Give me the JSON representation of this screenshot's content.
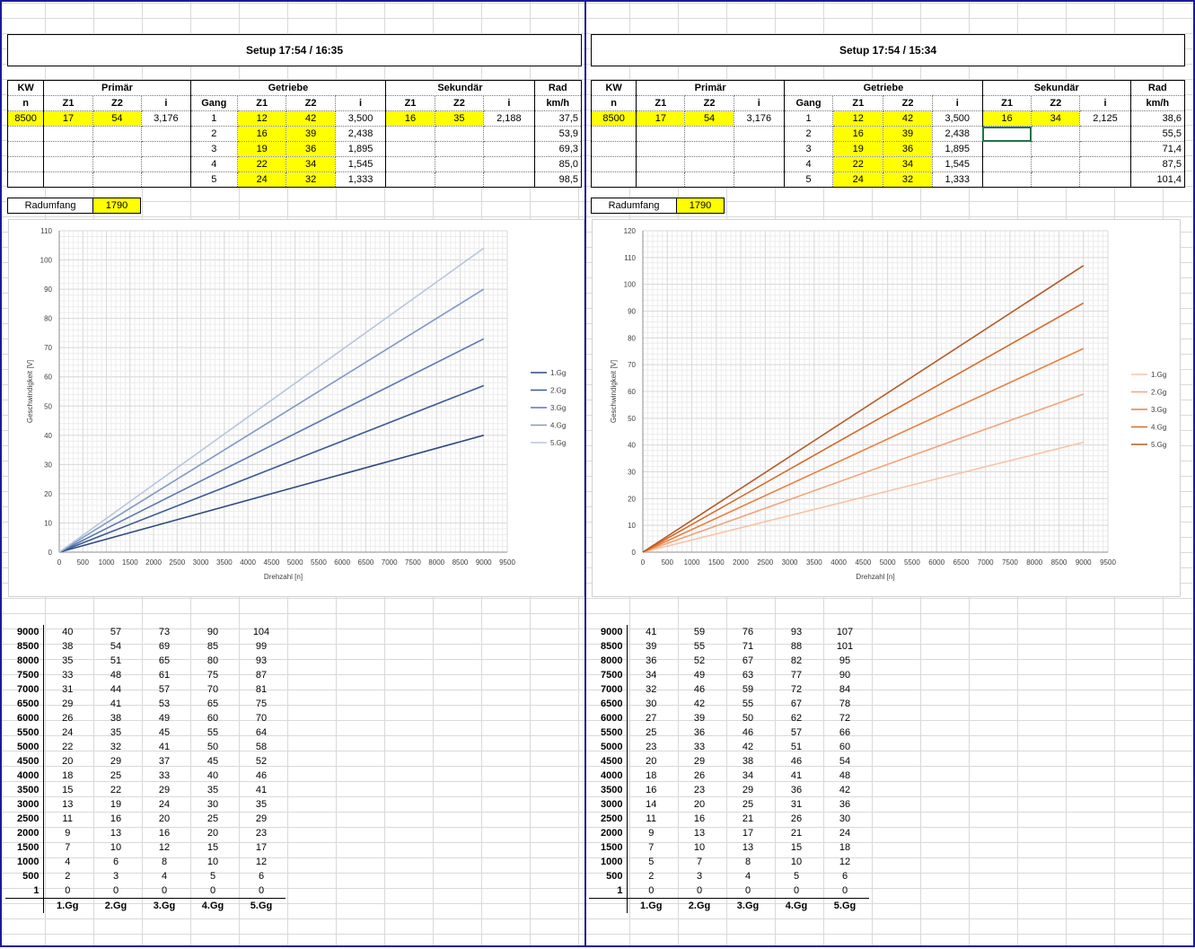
{
  "panels": [
    {
      "id": "left",
      "setup_title": "Setup 17:54 / 16:35",
      "headers_row1": [
        "KW",
        "Primär",
        "Getriebe",
        "Sekundär",
        "Rad"
      ],
      "headers_row2": [
        "n",
        "Z1",
        "Z2",
        "i",
        "Gang",
        "Z1",
        "Z2",
        "i",
        "Z1",
        "Z2",
        "i",
        "km/h"
      ],
      "first_row": {
        "n": "8500",
        "p_z1": "17",
        "p_z2": "54",
        "p_i": "3,176",
        "s_z1": "16",
        "s_z2": "35",
        "s_i": "2,188"
      },
      "gears": [
        {
          "gang": "1",
          "z1": "12",
          "z2": "42",
          "i": "3,500",
          "kmh": "37,5"
        },
        {
          "gang": "2",
          "z1": "16",
          "z2": "39",
          "i": "2,438",
          "kmh": "53,9"
        },
        {
          "gang": "3",
          "z1": "19",
          "z2": "36",
          "i": "1,895",
          "kmh": "69,3"
        },
        {
          "gang": "4",
          "z1": "22",
          "z2": "34",
          "i": "1,545",
          "kmh": "85,0"
        },
        {
          "gang": "5",
          "z1": "24",
          "z2": "32",
          "i": "1,333",
          "kmh": "98,5"
        }
      ],
      "radumfang_label": "Radumfang",
      "radumfang_value": "1790",
      "colors": [
        "#2e4a7f",
        "#3b5a94",
        "#5a79ad",
        "#8099c4",
        "#b7c5de"
      ],
      "chart_data": {
        "type": "line",
        "xlabel": "Drehzahl [n]",
        "ylabel": "Geschwindigkeit [V]",
        "xlim": [
          0,
          9500
        ],
        "ylim": [
          0,
          110
        ],
        "xticks": [
          0,
          500,
          1000,
          1500,
          2000,
          2500,
          3000,
          3500,
          4000,
          4500,
          5000,
          5500,
          6000,
          6500,
          7000,
          7500,
          8000,
          8500,
          9000,
          9500
        ],
        "yticks": [
          0,
          10,
          20,
          30,
          40,
          50,
          60,
          70,
          80,
          90,
          100,
          110
        ],
        "legend_position": "right",
        "series": [
          {
            "name": "1.Gg",
            "x": [
              0,
              9000
            ],
            "y": [
              0,
              40
            ]
          },
          {
            "name": "2.Gg",
            "x": [
              0,
              9000
            ],
            "y": [
              0,
              57
            ]
          },
          {
            "name": "3.Gg",
            "x": [
              0,
              9000
            ],
            "y": [
              0,
              73
            ]
          },
          {
            "name": "4.Gg",
            "x": [
              0,
              9000
            ],
            "y": [
              0,
              90
            ]
          },
          {
            "name": "5.Gg",
            "x": [
              0,
              9000
            ],
            "y": [
              0,
              104
            ]
          }
        ]
      },
      "speed_table": {
        "rpm": [
          "9000",
          "8500",
          "8000",
          "7500",
          "7000",
          "6500",
          "6000",
          "5500",
          "5000",
          "4500",
          "4000",
          "3500",
          "3000",
          "2500",
          "2000",
          "1500",
          "1000",
          "500",
          "1"
        ],
        "rows": [
          [
            "40",
            "57",
            "73",
            "90",
            "104"
          ],
          [
            "38",
            "54",
            "69",
            "85",
            "99"
          ],
          [
            "35",
            "51",
            "65",
            "80",
            "93"
          ],
          [
            "33",
            "48",
            "61",
            "75",
            "87"
          ],
          [
            "31",
            "44",
            "57",
            "70",
            "81"
          ],
          [
            "29",
            "41",
            "53",
            "65",
            "75"
          ],
          [
            "26",
            "38",
            "49",
            "60",
            "70"
          ],
          [
            "24",
            "35",
            "45",
            "55",
            "64"
          ],
          [
            "22",
            "32",
            "41",
            "50",
            "58"
          ],
          [
            "20",
            "29",
            "37",
            "45",
            "52"
          ],
          [
            "18",
            "25",
            "33",
            "40",
            "46"
          ],
          [
            "15",
            "22",
            "29",
            "35",
            "41"
          ],
          [
            "13",
            "19",
            "24",
            "30",
            "35"
          ],
          [
            "11",
            "16",
            "20",
            "25",
            "29"
          ],
          [
            "9",
            "13",
            "16",
            "20",
            "23"
          ],
          [
            "7",
            "10",
            "12",
            "15",
            "17"
          ],
          [
            "4",
            "6",
            "8",
            "10",
            "12"
          ],
          [
            "2",
            "3",
            "4",
            "5",
            "6"
          ],
          [
            "0",
            "0",
            "0",
            "0",
            "0"
          ]
        ],
        "footer": [
          "1.Gg",
          "2.Gg",
          "3.Gg",
          "4.Gg",
          "5.Gg"
        ]
      }
    },
    {
      "id": "right",
      "setup_title": "Setup 17:54 / 15:34",
      "headers_row1": [
        "KW",
        "Primär",
        "Getriebe",
        "Sekundär",
        "Rad"
      ],
      "headers_row2": [
        "n",
        "Z1",
        "Z2",
        "i",
        "Gang",
        "Z1",
        "Z2",
        "i",
        "Z1",
        "Z2",
        "i",
        "km/h"
      ],
      "first_row": {
        "n": "8500",
        "p_z1": "17",
        "p_z2": "54",
        "p_i": "3,176",
        "s_z1": "16",
        "s_z2": "34",
        "s_i": "2,125"
      },
      "gears": [
        {
          "gang": "1",
          "z1": "12",
          "z2": "42",
          "i": "3,500",
          "kmh": "38,6"
        },
        {
          "gang": "2",
          "z1": "16",
          "z2": "39",
          "i": "2,438",
          "kmh": "55,5"
        },
        {
          "gang": "3",
          "z1": "19",
          "z2": "36",
          "i": "1,895",
          "kmh": "71,4"
        },
        {
          "gang": "4",
          "z1": "22",
          "z2": "34",
          "i": "1,545",
          "kmh": "87,5"
        },
        {
          "gang": "5",
          "z1": "24",
          "z2": "32",
          "i": "1,333",
          "kmh": "101,4"
        }
      ],
      "radumfang_label": "Radumfang",
      "radumfang_value": "1790",
      "colors": [
        "#f8c3a6",
        "#f2a47a",
        "#e97f3f",
        "#d4692a",
        "#b35a26"
      ],
      "chart_data": {
        "type": "line",
        "xlabel": "Drehzahl [n]",
        "ylabel": "Geschwindigkeit [V]",
        "xlim": [
          0,
          9500
        ],
        "ylim": [
          0,
          120
        ],
        "xticks": [
          0,
          500,
          1000,
          1500,
          2000,
          2500,
          3000,
          3500,
          4000,
          4500,
          5000,
          5500,
          6000,
          6500,
          7000,
          7500,
          8000,
          8500,
          9000,
          9500
        ],
        "yticks": [
          0,
          10,
          20,
          30,
          40,
          50,
          60,
          70,
          80,
          90,
          100,
          110,
          120
        ],
        "legend_position": "right",
        "series": [
          {
            "name": "1.Gg",
            "x": [
              0,
              9000
            ],
            "y": [
              0,
              41
            ]
          },
          {
            "name": "2.Gg",
            "x": [
              0,
              9000
            ],
            "y": [
              0,
              59
            ]
          },
          {
            "name": "3.Gg",
            "x": [
              0,
              9000
            ],
            "y": [
              0,
              76
            ]
          },
          {
            "name": "4.Gg",
            "x": [
              0,
              9000
            ],
            "y": [
              0,
              93
            ]
          },
          {
            "name": "5.Gg",
            "x": [
              0,
              9000
            ],
            "y": [
              0,
              107
            ]
          }
        ]
      },
      "speed_table": {
        "rpm": [
          "9000",
          "8500",
          "8000",
          "7500",
          "7000",
          "6500",
          "6000",
          "5500",
          "5000",
          "4500",
          "4000",
          "3500",
          "3000",
          "2500",
          "2000",
          "1500",
          "1000",
          "500",
          "1"
        ],
        "rows": [
          [
            "41",
            "59",
            "76",
            "93",
            "107"
          ],
          [
            "39",
            "55",
            "71",
            "88",
            "101"
          ],
          [
            "36",
            "52",
            "67",
            "82",
            "95"
          ],
          [
            "34",
            "49",
            "63",
            "77",
            "90"
          ],
          [
            "32",
            "46",
            "59",
            "72",
            "84"
          ],
          [
            "30",
            "42",
            "55",
            "67",
            "78"
          ],
          [
            "27",
            "39",
            "50",
            "62",
            "72"
          ],
          [
            "25",
            "36",
            "46",
            "57",
            "66"
          ],
          [
            "23",
            "33",
            "42",
            "51",
            "60"
          ],
          [
            "20",
            "29",
            "38",
            "46",
            "54"
          ],
          [
            "18",
            "26",
            "34",
            "41",
            "48"
          ],
          [
            "16",
            "23",
            "29",
            "36",
            "42"
          ],
          [
            "14",
            "20",
            "25",
            "31",
            "36"
          ],
          [
            "11",
            "16",
            "21",
            "26",
            "30"
          ],
          [
            "9",
            "13",
            "17",
            "21",
            "24"
          ],
          [
            "7",
            "10",
            "13",
            "15",
            "18"
          ],
          [
            "5",
            "7",
            "8",
            "10",
            "12"
          ],
          [
            "2",
            "3",
            "4",
            "5",
            "6"
          ],
          [
            "0",
            "0",
            "0",
            "0",
            "0"
          ]
        ],
        "footer": [
          "1.Gg",
          "2.Gg",
          "3.Gg",
          "4.Gg",
          "5.Gg"
        ]
      }
    }
  ]
}
